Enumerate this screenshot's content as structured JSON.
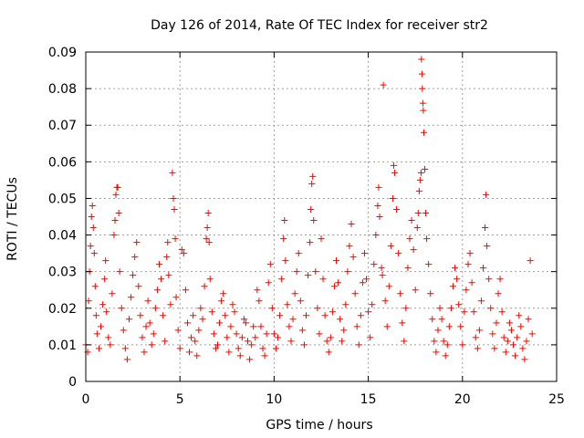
{
  "chart_data": {
    "type": "scatter",
    "title": "Day 126 of 2014, Rate Of TEC Index for receiver str2",
    "xlabel": "GPS time / hours",
    "ylabel": "ROTI / TECUs",
    "xlim": [
      0,
      25
    ],
    "ylim": [
      0,
      0.09
    ],
    "xticks": [
      0,
      5,
      10,
      15,
      20,
      25
    ],
    "xtick_labels": [
      "0",
      "5",
      "10",
      "15",
      "20",
      "25"
    ],
    "yticks": [
      0,
      0.01,
      0.02,
      0.03,
      0.04,
      0.05,
      0.06,
      0.07,
      0.08,
      0.09
    ],
    "ytick_labels": [
      "0",
      "0.01",
      "0.02",
      "0.03",
      "0.04",
      "0.05",
      "0.06",
      "0.07",
      "0.08",
      "0.09"
    ],
    "grid": true,
    "marker": "+",
    "series": [
      {
        "name": "ROTI",
        "color": "#ff0000",
        "points": [
          [
            0.0,
            0.01
          ],
          [
            0.1,
            0.008
          ],
          [
            0.15,
            0.022
          ],
          [
            0.2,
            0.03
          ],
          [
            0.25,
            0.037
          ],
          [
            0.3,
            0.045
          ],
          [
            0.35,
            0.048
          ],
          [
            0.4,
            0.042
          ],
          [
            0.45,
            0.035
          ],
          [
            0.5,
            0.026
          ],
          [
            0.55,
            0.018
          ],
          [
            0.6,
            0.013
          ],
          [
            0.7,
            0.009
          ],
          [
            0.8,
            0.015
          ],
          [
            0.9,
            0.021
          ],
          [
            1.0,
            0.028
          ],
          [
            1.05,
            0.033
          ],
          [
            1.1,
            0.019
          ],
          [
            1.2,
            0.012
          ],
          [
            1.3,
            0.01
          ],
          [
            1.4,
            0.024
          ],
          [
            1.5,
            0.04
          ],
          [
            1.55,
            0.044
          ],
          [
            1.6,
            0.051
          ],
          [
            1.65,
            0.053
          ],
          [
            1.7,
            0.053
          ],
          [
            1.75,
            0.046
          ],
          [
            1.8,
            0.03
          ],
          [
            1.9,
            0.02
          ],
          [
            2.0,
            0.014
          ],
          [
            2.1,
            0.009
          ],
          [
            2.2,
            0.006
          ],
          [
            2.3,
            0.017
          ],
          [
            2.4,
            0.023
          ],
          [
            2.5,
            0.029
          ],
          [
            2.6,
            0.034
          ],
          [
            2.7,
            0.038
          ],
          [
            2.8,
            0.026
          ],
          [
            2.9,
            0.018
          ],
          [
            3.0,
            0.012
          ],
          [
            3.1,
            0.008
          ],
          [
            3.2,
            0.015
          ],
          [
            3.3,
            0.022
          ],
          [
            3.4,
            0.016
          ],
          [
            3.5,
            0.01
          ],
          [
            3.6,
            0.013
          ],
          [
            3.7,
            0.02
          ],
          [
            3.8,
            0.025
          ],
          [
            3.9,
            0.032
          ],
          [
            4.0,
            0.028
          ],
          [
            4.1,
            0.018
          ],
          [
            4.2,
            0.011
          ],
          [
            4.3,
            0.034
          ],
          [
            4.35,
            0.038
          ],
          [
            4.4,
            0.029
          ],
          [
            4.5,
            0.021
          ],
          [
            4.6,
            0.057
          ],
          [
            4.65,
            0.05
          ],
          [
            4.7,
            0.047
          ],
          [
            4.75,
            0.039
          ],
          [
            4.8,
            0.023
          ],
          [
            4.9,
            0.014
          ],
          [
            5.0,
            0.009
          ],
          [
            5.1,
            0.036
          ],
          [
            5.2,
            0.035
          ],
          [
            5.3,
            0.025
          ],
          [
            5.4,
            0.016
          ],
          [
            5.5,
            0.008
          ],
          [
            5.6,
            0.012
          ],
          [
            5.7,
            0.018
          ],
          [
            5.8,
            0.011
          ],
          [
            5.9,
            0.007
          ],
          [
            6.0,
            0.014
          ],
          [
            6.1,
            0.02
          ],
          [
            6.2,
            0.017
          ],
          [
            6.3,
            0.026
          ],
          [
            6.4,
            0.039
          ],
          [
            6.45,
            0.042
          ],
          [
            6.5,
            0.046
          ],
          [
            6.55,
            0.038
          ],
          [
            6.6,
            0.028
          ],
          [
            6.7,
            0.019
          ],
          [
            6.8,
            0.013
          ],
          [
            6.9,
            0.009
          ],
          [
            7.0,
            0.01
          ],
          [
            7.1,
            0.016
          ],
          [
            7.2,
            0.022
          ],
          [
            7.3,
            0.024
          ],
          [
            7.4,
            0.018
          ],
          [
            7.5,
            0.012
          ],
          [
            7.6,
            0.008
          ],
          [
            7.7,
            0.015
          ],
          [
            7.8,
            0.021
          ],
          [
            7.9,
            0.019
          ],
          [
            8.0,
            0.013
          ],
          [
            8.1,
            0.009
          ],
          [
            8.2,
            0.007
          ],
          [
            8.3,
            0.012
          ],
          [
            8.4,
            0.017
          ],
          [
            8.5,
            0.016
          ],
          [
            8.6,
            0.011
          ],
          [
            8.7,
            0.006
          ],
          [
            8.8,
            0.01
          ],
          [
            8.9,
            0.015
          ],
          [
            9.0,
            0.012
          ],
          [
            9.1,
            0.025
          ],
          [
            9.2,
            0.022
          ],
          [
            9.3,
            0.015
          ],
          [
            9.4,
            0.009
          ],
          [
            9.5,
            0.007
          ],
          [
            9.6,
            0.013
          ],
          [
            9.7,
            0.027
          ],
          [
            9.8,
            0.032
          ],
          [
            9.9,
            0.02
          ],
          [
            10.0,
            0.013
          ],
          [
            10.1,
            0.009
          ],
          [
            10.2,
            0.012
          ],
          [
            10.3,
            0.018
          ],
          [
            10.4,
            0.028
          ],
          [
            10.5,
            0.039
          ],
          [
            10.55,
            0.044
          ],
          [
            10.6,
            0.033
          ],
          [
            10.7,
            0.021
          ],
          [
            10.8,
            0.015
          ],
          [
            10.9,
            0.011
          ],
          [
            11.0,
            0.017
          ],
          [
            11.1,
            0.024
          ],
          [
            11.2,
            0.03
          ],
          [
            11.3,
            0.035
          ],
          [
            11.4,
            0.022
          ],
          [
            11.5,
            0.014
          ],
          [
            11.6,
            0.01
          ],
          [
            11.7,
            0.018
          ],
          [
            11.8,
            0.029
          ],
          [
            11.9,
            0.038
          ],
          [
            11.95,
            0.047
          ],
          [
            12.0,
            0.054
          ],
          [
            12.05,
            0.056
          ],
          [
            12.1,
            0.044
          ],
          [
            12.2,
            0.03
          ],
          [
            12.3,
            0.02
          ],
          [
            12.4,
            0.013
          ],
          [
            12.5,
            0.039
          ],
          [
            12.6,
            0.028
          ],
          [
            12.7,
            0.018
          ],
          [
            12.8,
            0.011
          ],
          [
            12.9,
            0.008
          ],
          [
            13.0,
            0.012
          ],
          [
            13.1,
            0.019
          ],
          [
            13.2,
            0.026
          ],
          [
            13.3,
            0.033
          ],
          [
            13.4,
            0.027
          ],
          [
            13.5,
            0.017
          ],
          [
            13.6,
            0.011
          ],
          [
            13.7,
            0.014
          ],
          [
            13.8,
            0.021
          ],
          [
            13.9,
            0.03
          ],
          [
            14.0,
            0.037
          ],
          [
            14.1,
            0.043
          ],
          [
            14.2,
            0.034
          ],
          [
            14.3,
            0.024
          ],
          [
            14.4,
            0.015
          ],
          [
            14.5,
            0.01
          ],
          [
            14.6,
            0.018
          ],
          [
            14.7,
            0.027
          ],
          [
            14.8,
            0.035
          ],
          [
            14.9,
            0.028
          ],
          [
            15.0,
            0.019
          ],
          [
            15.1,
            0.012
          ],
          [
            15.2,
            0.021
          ],
          [
            15.3,
            0.032
          ],
          [
            15.4,
            0.04
          ],
          [
            15.5,
            0.048
          ],
          [
            15.55,
            0.053
          ],
          [
            15.6,
            0.045
          ],
          [
            15.7,
            0.031
          ],
          [
            15.75,
            0.029
          ],
          [
            15.8,
            0.081
          ],
          [
            15.9,
            0.022
          ],
          [
            16.0,
            0.015
          ],
          [
            16.1,
            0.026
          ],
          [
            16.2,
            0.037
          ],
          [
            16.3,
            0.05
          ],
          [
            16.35,
            0.059
          ],
          [
            16.4,
            0.057
          ],
          [
            16.5,
            0.047
          ],
          [
            16.6,
            0.035
          ],
          [
            16.7,
            0.024
          ],
          [
            16.8,
            0.016
          ],
          [
            16.9,
            0.011
          ],
          [
            17.0,
            0.02
          ],
          [
            17.1,
            0.031
          ],
          [
            17.2,
            0.039
          ],
          [
            17.3,
            0.044
          ],
          [
            17.4,
            0.036
          ],
          [
            17.5,
            0.025
          ],
          [
            17.6,
            0.042
          ],
          [
            17.65,
            0.046
          ],
          [
            17.7,
            0.052
          ],
          [
            17.75,
            0.055
          ],
          [
            17.8,
            0.057
          ],
          [
            17.82,
            0.088
          ],
          [
            17.85,
            0.084
          ],
          [
            17.87,
            0.08
          ],
          [
            17.9,
            0.076
          ],
          [
            17.92,
            0.074
          ],
          [
            17.95,
            0.068
          ],
          [
            18.0,
            0.058
          ],
          [
            18.05,
            0.046
          ],
          [
            18.1,
            0.039
          ],
          [
            18.2,
            0.032
          ],
          [
            18.3,
            0.024
          ],
          [
            18.4,
            0.017
          ],
          [
            18.5,
            0.011
          ],
          [
            18.6,
            0.008
          ],
          [
            18.7,
            0.014
          ],
          [
            18.8,
            0.02
          ],
          [
            18.9,
            0.017
          ],
          [
            19.0,
            0.011
          ],
          [
            19.1,
            0.007
          ],
          [
            19.2,
            0.01
          ],
          [
            19.3,
            0.015
          ],
          [
            19.4,
            0.02
          ],
          [
            19.5,
            0.026
          ],
          [
            19.6,
            0.031
          ],
          [
            19.7,
            0.028
          ],
          [
            19.8,
            0.021
          ],
          [
            19.9,
            0.015
          ],
          [
            20.0,
            0.01
          ],
          [
            20.1,
            0.019
          ],
          [
            20.2,
            0.025
          ],
          [
            20.3,
            0.032
          ],
          [
            20.4,
            0.035
          ],
          [
            20.5,
            0.027
          ],
          [
            20.6,
            0.019
          ],
          [
            20.7,
            0.012
          ],
          [
            20.8,
            0.009
          ],
          [
            20.9,
            0.014
          ],
          [
            21.0,
            0.022
          ],
          [
            21.1,
            0.031
          ],
          [
            21.2,
            0.042
          ],
          [
            21.25,
            0.051
          ],
          [
            21.3,
            0.037
          ],
          [
            21.4,
            0.028
          ],
          [
            21.5,
            0.02
          ],
          [
            21.6,
            0.013
          ],
          [
            21.7,
            0.009
          ],
          [
            21.8,
            0.016
          ],
          [
            21.9,
            0.024
          ],
          [
            22.0,
            0.028
          ],
          [
            22.1,
            0.019
          ],
          [
            22.2,
            0.012
          ],
          [
            22.3,
            0.008
          ],
          [
            22.4,
            0.011
          ],
          [
            22.5,
            0.016
          ],
          [
            22.6,
            0.014
          ],
          [
            22.7,
            0.01
          ],
          [
            22.8,
            0.007
          ],
          [
            22.9,
            0.012
          ],
          [
            23.0,
            0.018
          ],
          [
            23.1,
            0.015
          ],
          [
            23.2,
            0.009
          ],
          [
            23.3,
            0.006
          ],
          [
            23.4,
            0.011
          ],
          [
            23.5,
            0.017
          ],
          [
            23.6,
            0.033
          ],
          [
            23.7,
            0.013
          ]
        ]
      }
    ]
  }
}
